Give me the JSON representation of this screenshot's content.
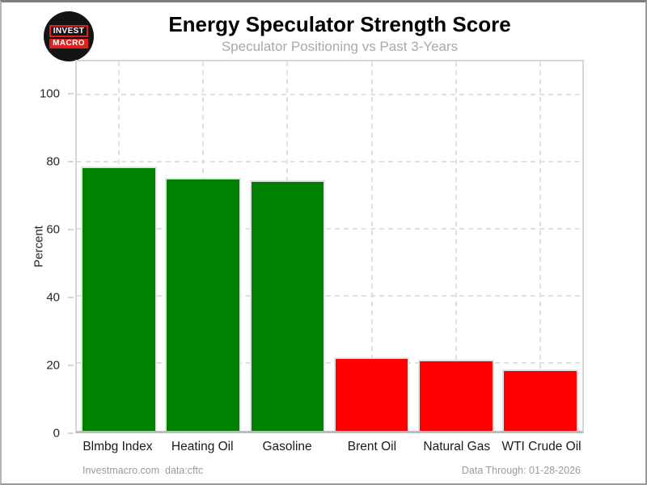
{
  "header": {
    "title": "Energy Speculator Strength Score",
    "subtitle": "Speculator Positioning vs Past 3-Years"
  },
  "logo": {
    "line1": "INVEST",
    "line2": "MACRO"
  },
  "footer": {
    "site": "Investmacro.com",
    "source": "data:cftc",
    "data_through": "Data Through: 01-28-2026"
  },
  "chart_data": {
    "type": "bar",
    "title": "Energy Speculator Strength Score",
    "subtitle": "Speculator Positioning vs Past 3-Years",
    "categories": [
      "Blmbg Index",
      "Heating Oil",
      "Gasoline",
      "Brent Oil",
      "Natural Gas",
      "WTI Crude Oil"
    ],
    "values": [
      78.6,
      75.3,
      74.7,
      22.0,
      21.2,
      18.4
    ],
    "bar_colors": [
      "#008000",
      "#008000",
      "#008000",
      "#ff0000",
      "#ff0000",
      "#ff0000"
    ],
    "xlabel": "",
    "ylabel": "Percent",
    "ylim": [
      0,
      110
    ],
    "yticks": [
      0,
      20,
      40,
      60,
      80,
      100
    ],
    "grid": "dashed",
    "legend": "none"
  },
  "colors": {
    "positive_bar": "#008000",
    "negative_bar": "#ff0000",
    "grid": "#e0e0e0",
    "plot_border": "#d6d6d6",
    "subtitle_text": "#a9a9a9",
    "footer_text": "#9b9b9b",
    "logo_red": "#e01f1f"
  }
}
